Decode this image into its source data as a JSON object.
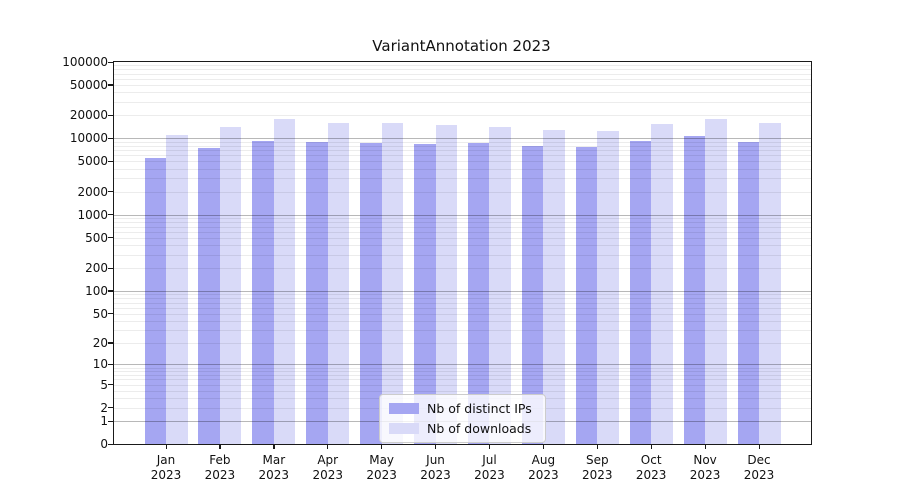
{
  "chart_data": {
    "type": "bar",
    "title": "VariantAnnotation 2023",
    "categories": [
      "Jan 2023",
      "Feb 2023",
      "Mar 2023",
      "Apr 2023",
      "May 2023",
      "Jun 2023",
      "Jul 2023",
      "Aug 2023",
      "Sep 2023",
      "Oct 2023",
      "Nov 2023",
      "Dec 2023"
    ],
    "series": [
      {
        "name": "Nb of distinct IPs",
        "color": "#a5a6f2",
        "values": [
          5600,
          7600,
          9300,
          9100,
          8600,
          8500,
          8700,
          8000,
          7700,
          9300,
          10800,
          9000
        ]
      },
      {
        "name": "Nb of downloads",
        "color": "#d9daf8",
        "values": [
          11000,
          14200,
          17800,
          16000,
          16000,
          15200,
          14100,
          12900,
          12600,
          15500,
          17900,
          15700
        ]
      }
    ],
    "xlabel": "",
    "ylabel": "",
    "y_scale": "log10(value+1)",
    "ylim": [
      0,
      100000
    ],
    "y_tick_labels": [
      "0",
      "1",
      "2",
      "5",
      "10",
      "20",
      "50",
      "100",
      "200",
      "500",
      "1000",
      "2000",
      "5000",
      "10000",
      "20000",
      "50000",
      "100000"
    ],
    "y_ticks": [
      0,
      1,
      2,
      5,
      10,
      20,
      50,
      100,
      200,
      500,
      1000,
      2000,
      5000,
      10000,
      20000,
      50000,
      100000
    ],
    "grid": {
      "enabled": true,
      "minor_color": "#ececec",
      "major_color": "#b8b8b8",
      "major_at": [
        1,
        10,
        100,
        1000,
        10000,
        100000
      ]
    },
    "legend_position": "lower center (inside plot)"
  },
  "colors": {
    "background": "#ffffff",
    "spine": "#1a1a1a",
    "text": "#111111",
    "bar_distinct_ips": "#a5a6f2",
    "bar_downloads": "#d9daf8",
    "legend_border": "#cccccc"
  }
}
